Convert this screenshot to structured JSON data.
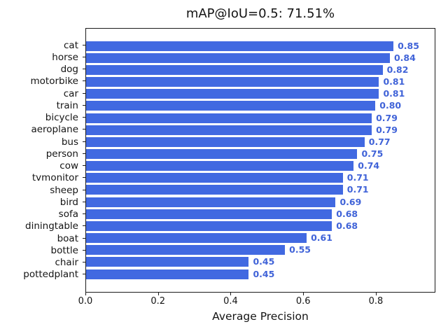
{
  "chart_data": {
    "type": "bar",
    "orientation": "horizontal",
    "title": "mAP@IoU=0.5: 71.51%",
    "xlabel": "Average Precision",
    "ylabel": "",
    "categories": [
      "cat",
      "horse",
      "dog",
      "motorbike",
      "car",
      "train",
      "bicycle",
      "aeroplane",
      "bus",
      "person",
      "cow",
      "tvmonitor",
      "sheep",
      "bird",
      "sofa",
      "diningtable",
      "boat",
      "bottle",
      "chair",
      "pottedplant"
    ],
    "values": [
      0.85,
      0.84,
      0.82,
      0.81,
      0.81,
      0.8,
      0.79,
      0.79,
      0.77,
      0.75,
      0.74,
      0.71,
      0.71,
      0.69,
      0.68,
      0.68,
      0.61,
      0.55,
      0.45,
      0.45
    ],
    "value_labels": [
      "0.85",
      "0.84",
      "0.82",
      "0.81",
      "0.81",
      "0.80",
      "0.79",
      "0.79",
      "0.77",
      "0.75",
      "0.74",
      "0.71",
      "0.71",
      "0.69",
      "0.68",
      "0.68",
      "0.61",
      "0.55",
      "0.45",
      "0.45"
    ],
    "xticks": [
      0.0,
      0.2,
      0.4,
      0.6,
      0.8
    ],
    "xtick_labels": [
      "0.0",
      "0.2",
      "0.4",
      "0.6",
      "0.8"
    ],
    "xlim": [
      0,
      0.964
    ],
    "bar_color": "#4169e1",
    "value_label_color": "#4063d8",
    "grid": false,
    "legend": null
  }
}
